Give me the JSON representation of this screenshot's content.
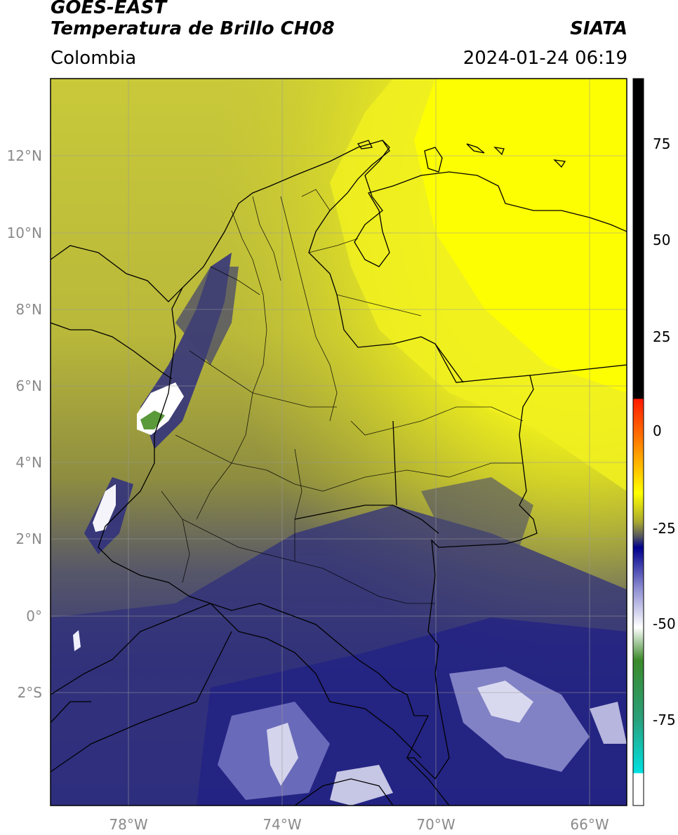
{
  "header": {
    "satellite": "GOES-EAST",
    "product": "Temperatura de Brillo CH08",
    "agency": "SIATA",
    "region": "Colombia",
    "timestamp": "2024-01-24 06:19"
  },
  "axes": {
    "lon_ticks": [
      "78°W",
      "74°W",
      "70°W",
      "66°W"
    ],
    "lat_ticks": [
      "12°N",
      "10°N",
      "8°N",
      "6°N",
      "4°N",
      "2°N",
      "0°",
      "2°S"
    ]
  },
  "colorbar": {
    "ticks": [
      "75",
      "50",
      "25",
      "0",
      "-25",
      "-50",
      "-75"
    ]
  }
}
